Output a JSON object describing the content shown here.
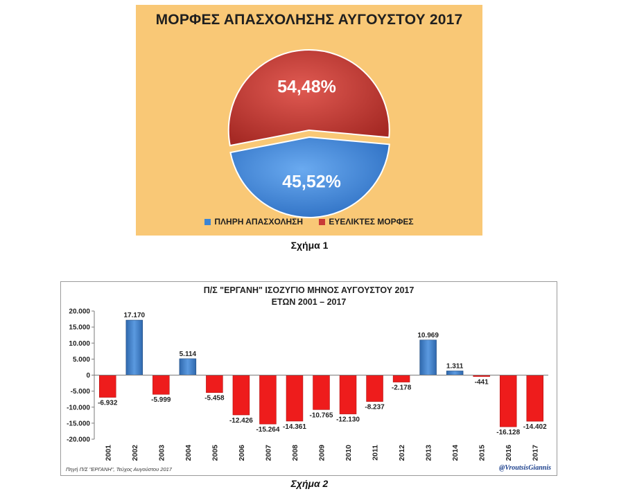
{
  "figure1": {
    "caption": "Σχήμα 1",
    "chart_data": {
      "type": "pie",
      "title": "ΜΟΡΦΕΣ ΑΠΑΣΧΟΛΗΣΗΣ ΑΥΓΟΥΣΤΟΥ 2017",
      "slices": [
        {
          "label": "ΠΛΗΡΗ ΑΠΑΣΧΟΛΗΣΗ",
          "value": 45.52,
          "display": "45,52%",
          "color": "#3d85d4"
        },
        {
          "label": "ΕΥΕΛΙΚΤΕΣ ΜΟΡΦΕΣ",
          "value": 54.48,
          "display": "54,48%",
          "color": "#c83a36"
        }
      ],
      "legend_position": "bottom",
      "background": "#f9c876"
    }
  },
  "figure2": {
    "caption": "Σχήμα 2",
    "source": "Πηγή Π/Σ \"ΕΡΓΑΝΗ\", Τεύχος Αυγούστου 2017",
    "credit": "@VroutsisGiannis",
    "chart_data": {
      "type": "bar",
      "title": "Π/Σ \"ΕΡΓΑΝΗ\" ΙΣΟΖΥΓΙΟ ΜΗΝΟΣ ΑΥΓΟΥΣΤΟΥ 2017",
      "subtitle": "ΕΤΩΝ 2001 – 2017",
      "categories": [
        "2001",
        "2002",
        "2003",
        "2004",
        "2005",
        "2006",
        "2007",
        "2008",
        "2009",
        "2010",
        "2011",
        "2012",
        "2013",
        "2014",
        "2015",
        "2016",
        "2017"
      ],
      "values": [
        -6932,
        17170,
        -5999,
        5114,
        -5458,
        -12426,
        -15264,
        -14361,
        -10765,
        -12130,
        -8237,
        -2178,
        10969,
        1311,
        -441,
        -16128,
        -14402
      ],
      "value_labels": [
        "-6.932",
        "17.170",
        "-5.999",
        "5.114",
        "-5.458",
        "-12.426",
        "-15.264",
        "-14.361",
        "-10.765",
        "-12.130",
        "-8.237",
        "-2.178",
        "10.969",
        "1.311",
        "-441",
        "-16.128",
        "-14.402"
      ],
      "ylim": [
        -20000,
        20000
      ],
      "yticks": [
        20000,
        15000,
        10000,
        5000,
        0,
        -5000,
        -10000,
        -15000,
        -20000
      ],
      "ytick_labels": [
        "20.000",
        "15.000",
        "10.000",
        "5.000",
        "0",
        "-5.000",
        "-10.000",
        "-15.000",
        "-20.000"
      ],
      "positive_color": "#3d7fc9",
      "negative_color": "#ee1c1c",
      "grid": false
    }
  }
}
